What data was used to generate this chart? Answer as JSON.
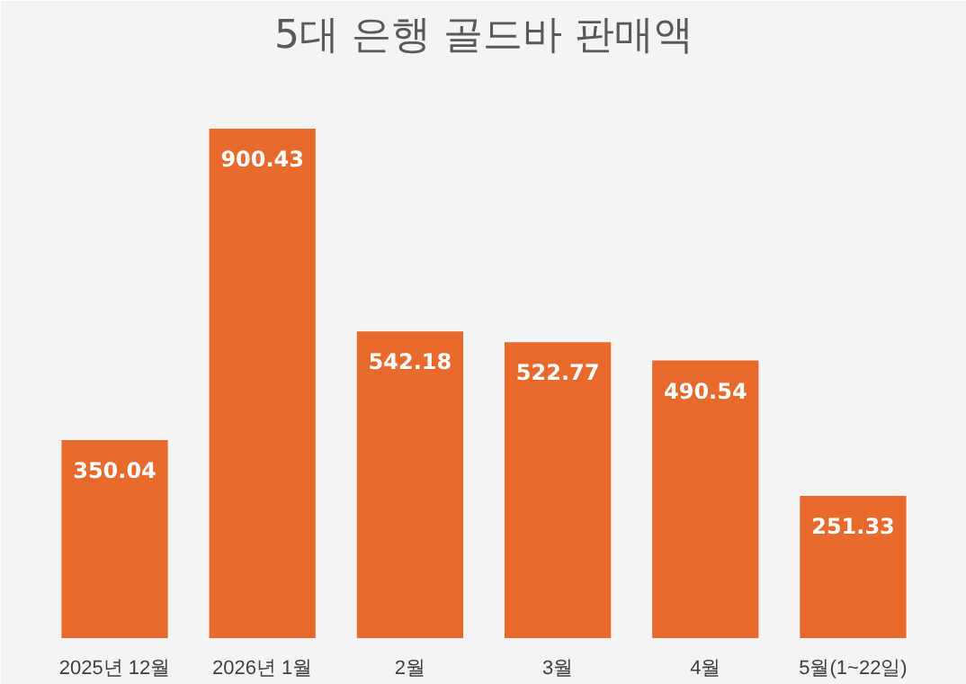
{
  "chart_data": {
    "type": "bar",
    "title": "5대 은행 골드바 판매액",
    "categories": [
      "2025년 12월",
      "2026년 1월",
      "2월",
      "3월",
      "4월",
      "5월(1~22일)"
    ],
    "values": [
      350.04,
      900.43,
      542.18,
      522.77,
      490.54,
      251.33
    ],
    "color": "#e8692c",
    "data_labels": true
  }
}
